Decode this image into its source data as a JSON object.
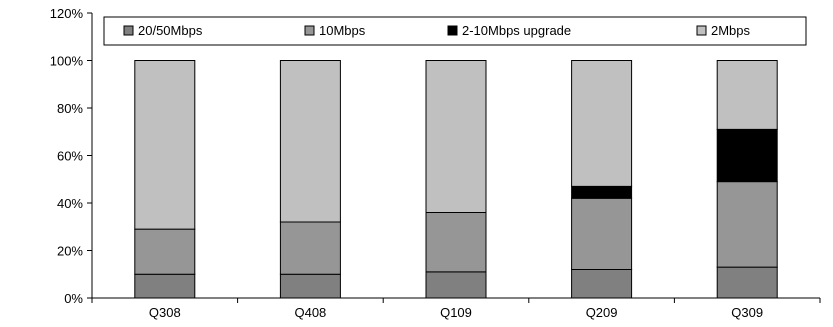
{
  "chart_data": {
    "type": "bar",
    "stacked": true,
    "categories": [
      "Q308",
      "Q408",
      "Q109",
      "Q209",
      "Q309"
    ],
    "series": [
      {
        "name": "20/50Mbps",
        "color": "#808080",
        "values": [
          10,
          10,
          11,
          12,
          13
        ]
      },
      {
        "name": "10Mbps",
        "color": "#969696",
        "values": [
          19,
          22,
          25,
          30,
          36
        ]
      },
      {
        "name": "2-10Mbps upgrade",
        "color": "#000000",
        "values": [
          0,
          0,
          0,
          5,
          22
        ]
      },
      {
        "name": "2Mbps",
        "color": "#c0c0c0",
        "values": [
          71,
          68,
          64,
          53,
          29
        ]
      }
    ],
    "ylim": [
      0,
      120
    ],
    "yticks": [
      "0%",
      "20%",
      "40%",
      "60%",
      "80%",
      "100%",
      "120%"
    ],
    "legend_position": "top",
    "grid": false
  }
}
